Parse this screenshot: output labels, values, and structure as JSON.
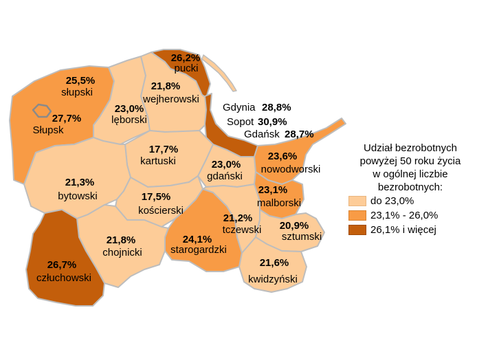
{
  "colors": {
    "low": "#fdcc98",
    "mid": "#f89b45",
    "high": "#c35e0b",
    "border": "#bdbdbd"
  },
  "legend": {
    "title_lines": [
      "Udział bezrobotnych",
      "powyżej 50 roku życia",
      "w ogólnej liczbie",
      "bezrobotnych:"
    ],
    "items": [
      {
        "label": "do 23,0%",
        "color": "#fdcc98"
      },
      {
        "label": "23,1% - 26,0%",
        "color": "#f89b45"
      },
      {
        "label": "26,1% i więcej",
        "color": "#c35e0b"
      }
    ]
  },
  "regions": {
    "pucki": {
      "name": "pucki",
      "value": "26,2%"
    },
    "slupski": {
      "name": "słupski",
      "value": "25,5%"
    },
    "slupsk": {
      "name": "Słupsk",
      "value": "27,7%"
    },
    "wejherowski": {
      "name": "wejherowski",
      "value": "21,8%"
    },
    "leborski": {
      "name": "lęborski",
      "value": "23,0%"
    },
    "gdynia": {
      "name": "Gdynia",
      "value": "28,8%"
    },
    "sopot": {
      "name": "Sopot",
      "value": "30,9%"
    },
    "gdansk": {
      "name": "Gdańsk",
      "value": "28,7%"
    },
    "kartuski": {
      "name": "kartuski",
      "value": "17,7%"
    },
    "nowodworski": {
      "name": "nowodworski",
      "value": "23,6%"
    },
    "gdanski": {
      "name": "gdański",
      "value": "23,0%"
    },
    "bytowski": {
      "name": "bytowski",
      "value": "21,3%"
    },
    "malborski": {
      "name": "malborski",
      "value": "23,1%"
    },
    "koscierski": {
      "name": "kościerski",
      "value": "17,5%"
    },
    "tczewski": {
      "name": "tczewski",
      "value": "21,2%"
    },
    "sztumski": {
      "name": "sztumski",
      "value": "20,9%"
    },
    "chojnicki": {
      "name": "chojnicki",
      "value": "21,8%"
    },
    "starogardzki": {
      "name": "starogardzki",
      "value": "24,1%"
    },
    "czluchowski": {
      "name": "człuchowski",
      "value": "26,7%"
    },
    "kwidzynski": {
      "name": "kwidzyński",
      "value": "21,6%"
    }
  }
}
